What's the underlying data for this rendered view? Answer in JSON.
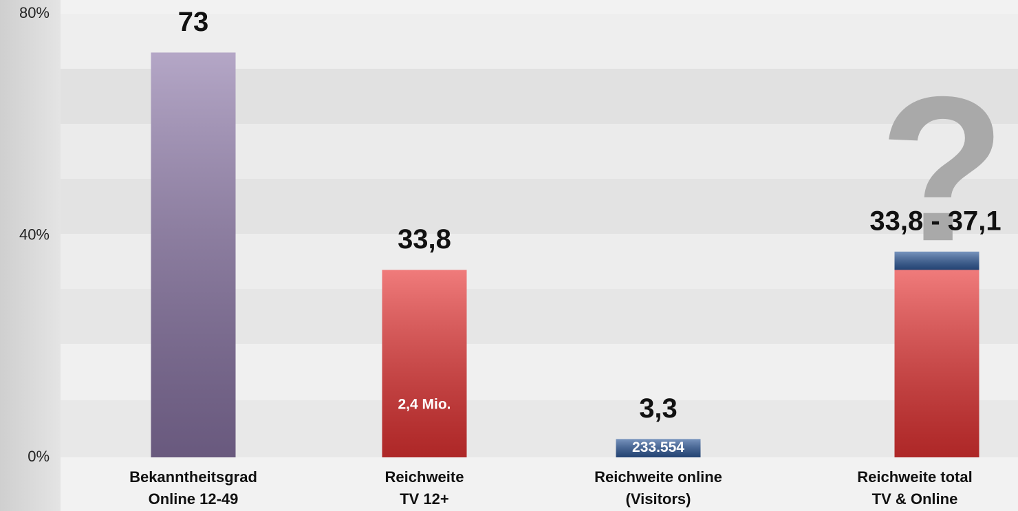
{
  "chart_data": {
    "type": "bar",
    "categories": [
      "Bekanntheitsgrad\nOnline 12-49",
      "Reichweite\nTV 12+",
      "Reichweite online\n(Visitors)",
      "Reichweite total\nTV & Online"
    ],
    "series": [
      {
        "color": "#e83434",
        "values": [
          null,
          33.8,
          null,
          33.8
        ]
      },
      {
        "color": "#2f5a9a",
        "values": [
          null,
          null,
          3.3,
          3.3
        ]
      },
      {
        "color": "#8c77a8",
        "values": [
          73,
          null,
          null,
          null
        ]
      }
    ],
    "bar_labels": [
      "73",
      "33,8",
      "3,3",
      "33,8 - 37,1"
    ],
    "inner_labels": [
      null,
      "2,4 Mio.",
      "233.554",
      null
    ],
    "annotation": "?",
    "ylim": [
      0,
      80
    ],
    "yticks": [
      {
        "value": 0,
        "label": "0%"
      },
      {
        "value": 40,
        "label": "40%"
      },
      {
        "value": 80,
        "label": "80%"
      }
    ],
    "stacked": true
  }
}
